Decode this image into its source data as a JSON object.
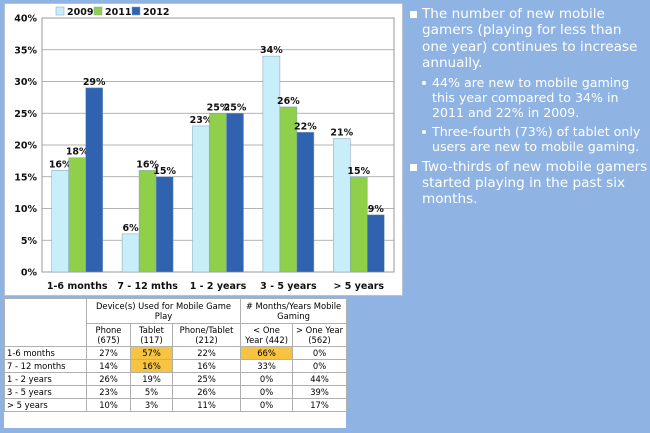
{
  "chart_data": {
    "type": "bar",
    "categories": [
      "1-6 months",
      "7 - 12 mths",
      "1 - 2 years",
      "3 - 5 years",
      "> 5 years"
    ],
    "series": [
      {
        "name": "2009",
        "color": "#c8eef9",
        "values": [
          16,
          6,
          23,
          34,
          21
        ]
      },
      {
        "name": "2011",
        "color": "#8fcf4a",
        "values": [
          18,
          16,
          25,
          26,
          15
        ]
      },
      {
        "name": "2012",
        "color": "#2f63b0",
        "values": [
          29,
          15,
          25,
          22,
          9
        ]
      }
    ],
    "data_labels": [
      [
        "16%",
        "6%",
        "23%",
        "34%",
        "21%"
      ],
      [
        "18%",
        "16%",
        "25%",
        "26%",
        "15%"
      ],
      [
        "29%",
        "15%",
        "25%",
        "22%",
        "9%"
      ]
    ],
    "yticks": [
      "0%",
      "5%",
      "10%",
      "15%",
      "20%",
      "25%",
      "30%",
      "35%",
      "40%"
    ],
    "ylim": [
      0,
      40
    ],
    "grid": true,
    "legend_position": "top"
  },
  "bullets": [
    {
      "text": "The number of new mobile gamers (playing for less than one year) continues to increase annually.",
      "level": 1
    },
    {
      "text": "44% are new to mobile gaming this year compared to 34% in 2011 and 22% in 2009.",
      "level": 2
    },
    {
      "text": "Three-fourth (73%) of tablet only users are new to mobile gaming.",
      "level": 2
    },
    {
      "text": "Two-thirds of new mobile gamers started playing in the past six months.",
      "level": 1
    }
  ],
  "table": {
    "group_headers": [
      "Device(s) Used for Mobile Game Play",
      "# Months/Years Mobile Gaming"
    ],
    "columns": [
      "Phone (675)",
      "Tablet (117)",
      "Phone/Tablet (212)",
      "< One Year (442)",
      "> One Year (562)"
    ],
    "rows": [
      {
        "label": "1-6 months",
        "cells": [
          "27%",
          "57%",
          "22%",
          "66%",
          "0%"
        ]
      },
      {
        "label": "7 - 12 months",
        "cells": [
          "14%",
          "16%",
          "16%",
          "33%",
          "0%"
        ]
      },
      {
        "label": "1 - 2 years",
        "cells": [
          "26%",
          "19%",
          "25%",
          "0%",
          "44%"
        ]
      },
      {
        "label": "3 - 5 years",
        "cells": [
          "23%",
          "5%",
          "26%",
          "0%",
          "39%"
        ]
      },
      {
        "label": "> 5 years",
        "cells": [
          "10%",
          "3%",
          "11%",
          "0%",
          "17%"
        ]
      }
    ],
    "highlight_color": "#f6c440"
  }
}
